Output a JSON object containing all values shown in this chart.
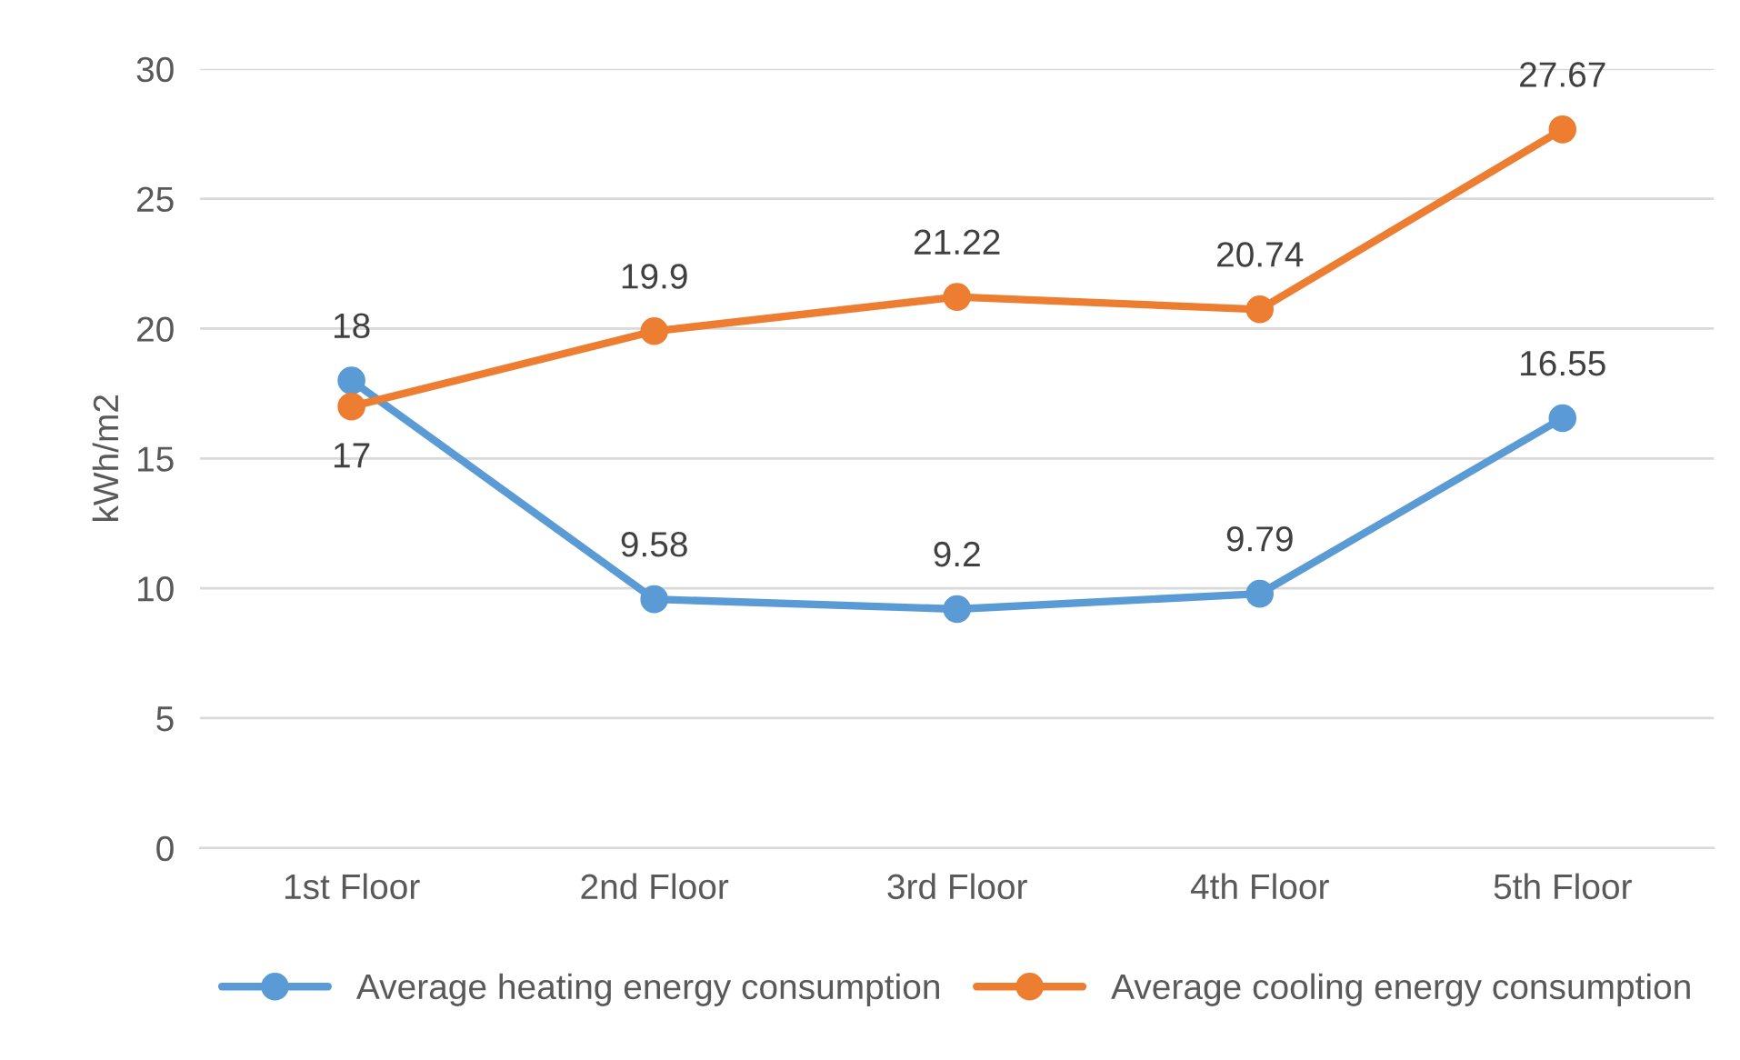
{
  "chart_data": {
    "type": "line",
    "ylabel": "kWh/m2",
    "categories": [
      "1st Floor",
      "2nd Floor",
      "3rd Floor",
      "4th Floor",
      "5th Floor"
    ],
    "series": [
      {
        "name": "Average heating energy consumption",
        "color": "#5b9bd5",
        "values": [
          18,
          9.58,
          9.2,
          9.79,
          16.55
        ]
      },
      {
        "name": "Average cooling energy consumption",
        "color": "#ed7d31",
        "values": [
          17,
          19.9,
          21.22,
          20.74,
          27.67
        ]
      }
    ],
    "ylim": [
      0,
      30
    ],
    "yticks": [
      0,
      5,
      10,
      15,
      20,
      25,
      30
    ],
    "grid": "y",
    "legend": "bottom",
    "marker": "circle",
    "line_style": "solid",
    "data_labels": true
  }
}
